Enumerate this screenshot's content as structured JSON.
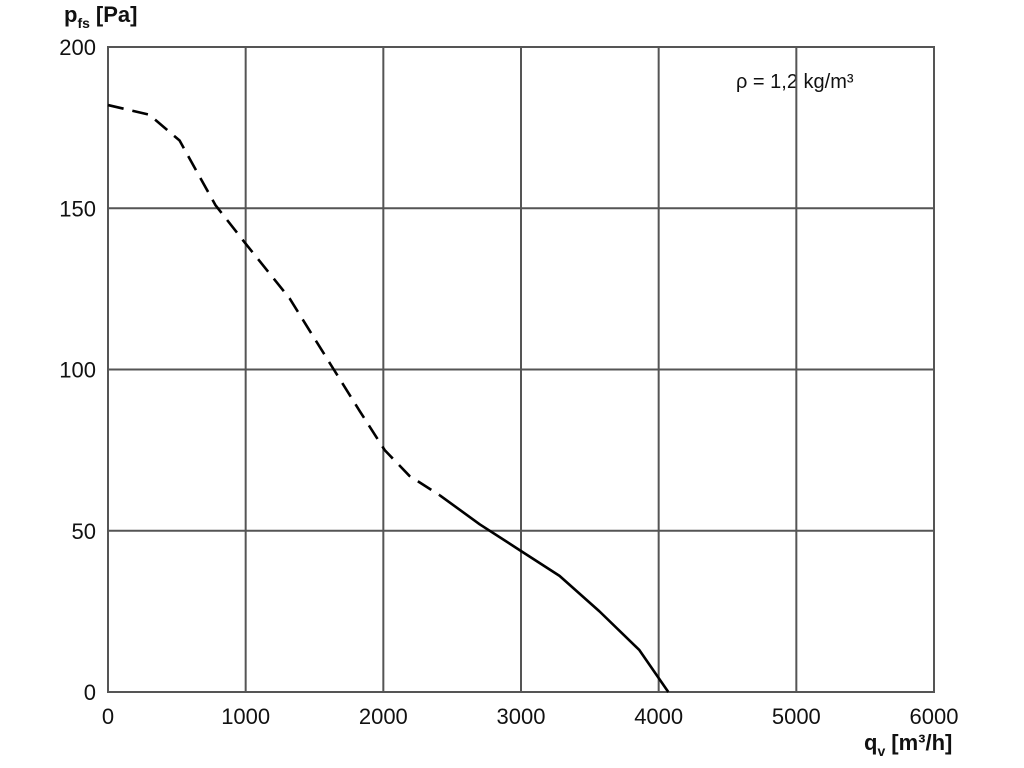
{
  "chart_data": {
    "type": "line",
    "ylabel": {
      "symbol": "p",
      "subscript": "fs",
      "unit": "[Pa]"
    },
    "xlabel": {
      "symbol": "q",
      "subscript": "v",
      "unit": "[m³/h]"
    },
    "annotation": "ρ = 1,2 kg/m³",
    "xlim": [
      0,
      6000
    ],
    "xticks": [
      0,
      1000,
      2000,
      3000,
      4000,
      5000,
      6000
    ],
    "ylim": [
      0,
      200
    ],
    "yticks": [
      0,
      50,
      100,
      150,
      200
    ],
    "grid": true,
    "series": [
      {
        "style": "dashed",
        "color": "#000000",
        "x": [
          0,
          300,
          520,
          780,
          1000,
          1320,
          1640,
          1830,
          2010,
          2190,
          2410
        ],
        "values": [
          182,
          179,
          171,
          151,
          139,
          122,
          100,
          87,
          75,
          67,
          61
        ]
      },
      {
        "style": "solid",
        "color": "#000000",
        "x": [
          2410,
          2700,
          2990,
          3280,
          3570,
          3860,
          4070
        ],
        "values": [
          61,
          52,
          44,
          36,
          25,
          13,
          0
        ]
      }
    ]
  }
}
